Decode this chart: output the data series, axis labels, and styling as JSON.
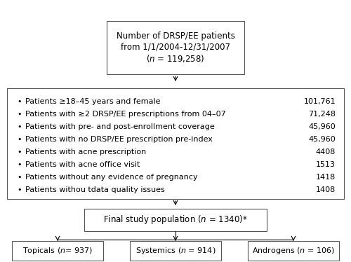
{
  "top_text": "Number of DRSP/EE patients\nfrom 1/1/2004-12/31/2007\n($n$ = 119,258)",
  "middle_box_items": [
    {
      "label": "Patients ≥18–45 years and female",
      "value": "101,761"
    },
    {
      "label": "Patients with ≥2 DRSP/EE prescriptions from 04–07",
      "value": "71,248"
    },
    {
      "label": "Patients with pre- and post-enrollment coverage",
      "value": "45,960"
    },
    {
      "label": "Patients with no DRSP/EE prescription pre-index",
      "value": "45,960"
    },
    {
      "label": "Patients with acne prescription",
      "value": "4408"
    },
    {
      "label": "Patients with acne office visit",
      "value": "1513"
    },
    {
      "label": "Patients without any evidence of pregnancy",
      "value": "1418"
    },
    {
      "label": "Patients withou tdata quality issues",
      "value": "1408"
    }
  ],
  "final_box": "Final study population ($n$ = 1340)*",
  "bottom_boxes": [
    "Topicals ($n$= 937)",
    "Systemics ($n$ = 914)",
    "Androgens ($n$ = 106)"
  ],
  "box_color": "#ffffff",
  "border_color": "#555555",
  "text_color": "#000000",
  "arrow_color": "#000000"
}
